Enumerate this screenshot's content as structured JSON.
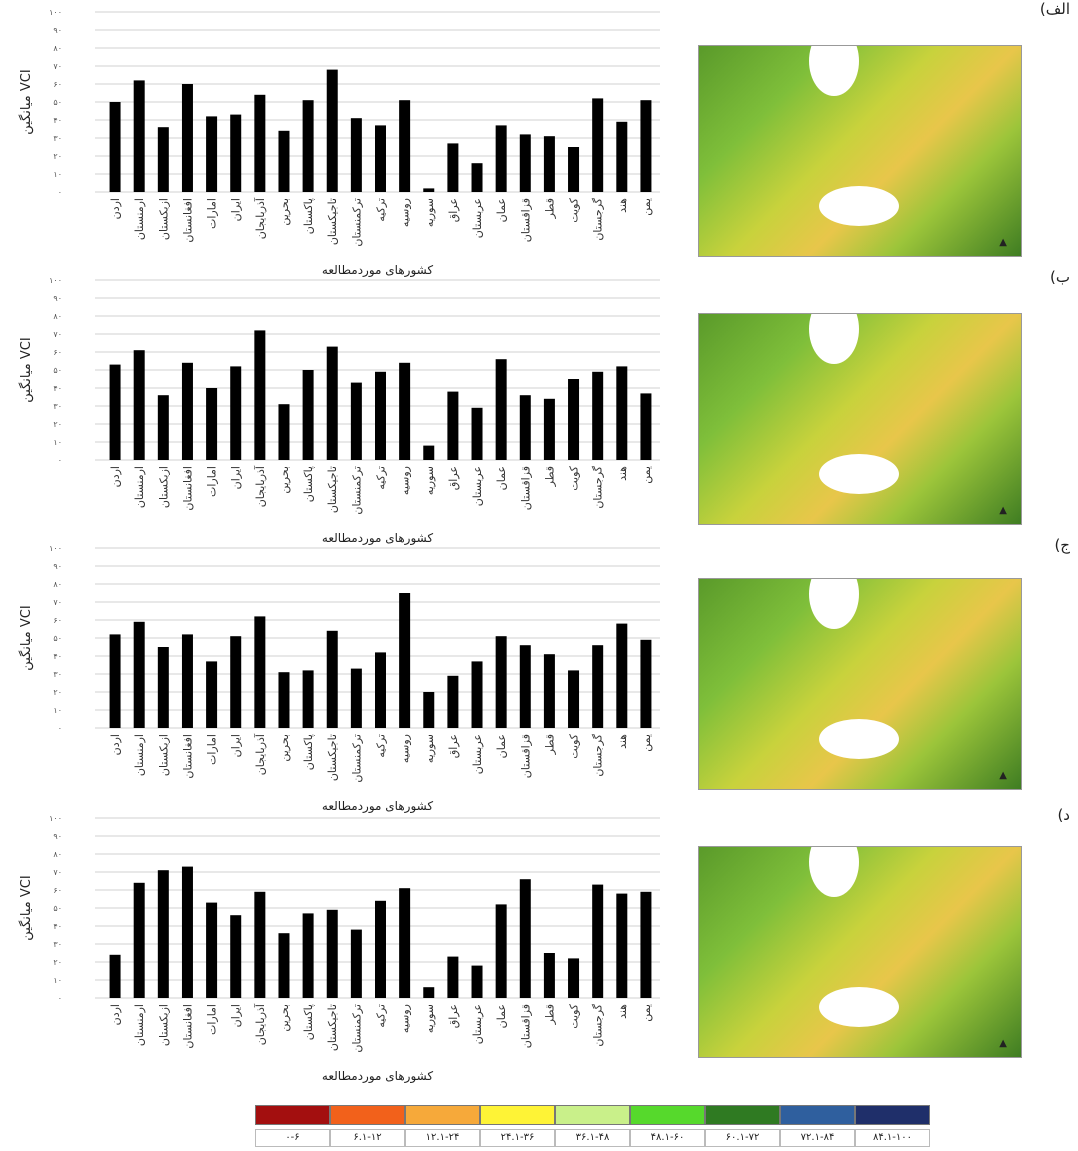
{
  "chart_data": [
    {
      "type": "bar",
      "panel_label": "الف)",
      "ylabel": "میانگین VCI",
      "xlabel": "کشورهای موردمطالعه",
      "ylim": [
        0,
        100
      ],
      "yticks": [
        "۰",
        "۱۰",
        "۲۰",
        "۳۰",
        "۴۰",
        "۵۰",
        "۶۰",
        "۷۰",
        "۸۰",
        "۹۰",
        "۱۰۰"
      ],
      "categories": [
        "اردن",
        "ارمنستان",
        "ازبکستان",
        "افغانستان",
        "امارات",
        "ایران",
        "آذربایجان",
        "بحرین",
        "پاکستان",
        "تاجیکستان",
        "ترکمنستان",
        "ترکیه",
        "روسیه",
        "سوریه",
        "عراق",
        "عربستان",
        "عمان",
        "قزاقستان",
        "قطر",
        "کویت",
        "گرجستان",
        "هند",
        "یمن"
      ],
      "values": [
        50,
        62,
        36,
        60,
        42,
        43,
        54,
        34,
        51,
        68,
        41,
        37,
        51,
        2,
        27,
        16,
        37,
        32,
        31,
        25,
        52,
        39,
        51
      ]
    },
    {
      "type": "bar",
      "panel_label": "ب)",
      "ylabel": "میانگین VCI",
      "xlabel": "کشورهای موردمطالعه",
      "ylim": [
        0,
        100
      ],
      "yticks": [
        "۰",
        "۱۰",
        "۲۰",
        "۳۰",
        "۴۰",
        "۵۰",
        "۶۰",
        "۷۰",
        "۸۰",
        "۹۰",
        "۱۰۰"
      ],
      "categories": [
        "اردن",
        "ارمنستان",
        "ازبکستان",
        "افغانستان",
        "امارات",
        "ایران",
        "آذربایجان",
        "بحرین",
        "پاکستان",
        "تاجیکستان",
        "ترکمنستان",
        "ترکیه",
        "روسیه",
        "سوریه",
        "عراق",
        "عربستان",
        "عمان",
        "قزاقستان",
        "قطر",
        "کویت",
        "گرجستان",
        "هند",
        "یمن"
      ],
      "values": [
        53,
        61,
        36,
        54,
        40,
        52,
        72,
        31,
        50,
        63,
        43,
        49,
        54,
        8,
        38,
        29,
        56,
        36,
        34,
        45,
        49,
        52,
        37
      ]
    },
    {
      "type": "bar",
      "panel_label": "ج)",
      "ylabel": "میانگین VCI",
      "xlabel": "کشورهای موردمطالعه",
      "ylim": [
        0,
        100
      ],
      "yticks": [
        "۰",
        "۱۰",
        "۲۰",
        "۳۰",
        "۴۰",
        "۵۰",
        "۶۰",
        "۷۰",
        "۸۰",
        "۹۰",
        "۱۰۰"
      ],
      "categories": [
        "اردن",
        "ارمنستان",
        "ازبکستان",
        "افغانستان",
        "امارات",
        "ایران",
        "آذربایجان",
        "بحرین",
        "پاکستان",
        "تاجیکستان",
        "ترکمنستان",
        "ترکیه",
        "روسیه",
        "سوریه",
        "عراق",
        "عربستان",
        "عمان",
        "قزاقستان",
        "قطر",
        "کویت",
        "گرجستان",
        "هند",
        "یمن"
      ],
      "values": [
        52,
        59,
        45,
        52,
        37,
        51,
        62,
        31,
        32,
        54,
        33,
        42,
        75,
        20,
        29,
        37,
        51,
        46,
        41,
        32,
        46,
        58,
        49
      ]
    },
    {
      "type": "bar",
      "panel_label": "د)",
      "ylabel": "میانگین VCI",
      "xlabel": "کشورهای موردمطالعه",
      "ylim": [
        0,
        100
      ],
      "yticks": [
        "۰",
        "۱۰",
        "۲۰",
        "۳۰",
        "۴۰",
        "۵۰",
        "۶۰",
        "۷۰",
        "۸۰",
        "۹۰",
        "۱۰۰"
      ],
      "categories": [
        "اردن",
        "ارمنستان",
        "ازبکستان",
        "افغانستان",
        "امارات",
        "ایران",
        "آذربایجان",
        "بحرین",
        "پاکستان",
        "تاجیکستان",
        "ترکمنستان",
        "ترکیه",
        "روسیه",
        "سوریه",
        "عراق",
        "عربستان",
        "عمان",
        "قزاقستان",
        "قطر",
        "کویت",
        "گرجستان",
        "هند",
        "یمن"
      ],
      "values": [
        24,
        64,
        71,
        73,
        53,
        46,
        59,
        36,
        47,
        49,
        38,
        54,
        61,
        6,
        23,
        18,
        52,
        66,
        25,
        22,
        63,
        58,
        59
      ]
    }
  ],
  "legend": {
    "colors": [
      "#a30f0f",
      "#f2611b",
      "#f6a93a",
      "#fef336",
      "#c9f08a",
      "#56d92c",
      "#2f7a22",
      "#2f5f9e",
      "#1f2f6a"
    ],
    "labels": [
      "۰-۶",
      "۶.۱-۱۲",
      "۱۲.۱-۲۴",
      "۲۴.۱-۳۶",
      "۳۶.۱-۴۸",
      "۴۸.۱-۶۰",
      "۶۰.۱-۷۲",
      "۷۲.۱-۸۴",
      "۸۴.۱-۱۰۰"
    ]
  },
  "map_north_symbol": "▲"
}
